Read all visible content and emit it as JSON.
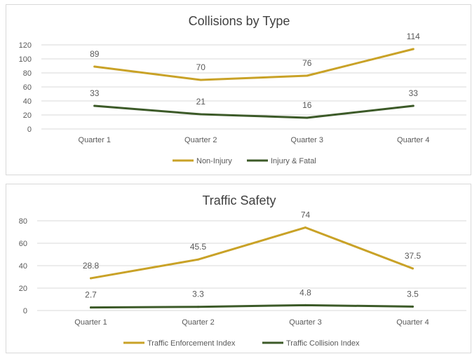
{
  "chart_data": [
    {
      "type": "line",
      "title": "Collisions by Type",
      "categories": [
        "Quarter 1",
        "Quarter 2",
        "Quarter 3",
        "Quarter 4"
      ],
      "ylim": [
        0,
        120
      ],
      "yticks": [
        0,
        20,
        40,
        60,
        80,
        100,
        120
      ],
      "grid": true,
      "legend": "bottom",
      "series": [
        {
          "name": "Non-Injury",
          "values": [
            89,
            70,
            76,
            114
          ],
          "color": "#c9a227"
        },
        {
          "name": "Injury & Fatal",
          "values": [
            33,
            21,
            16,
            33
          ],
          "color": "#3c5a28"
        }
      ]
    },
    {
      "type": "line",
      "title": "Traffic Safety",
      "categories": [
        "Quarter 1",
        "Quarter 2",
        "Quarter 3",
        "Quarter 4"
      ],
      "ylim": [
        0,
        80
      ],
      "yticks": [
        0,
        20,
        40,
        60,
        80
      ],
      "grid": true,
      "legend": "bottom",
      "series": [
        {
          "name": "Traffic Enforcement Index",
          "values": [
            28.8,
            45.5,
            74,
            37.5
          ],
          "color": "#c9a227"
        },
        {
          "name": "Traffic Collision Index",
          "values": [
            2.7,
            3.3,
            4.8,
            3.5
          ],
          "color": "#3c5a28"
        }
      ]
    }
  ]
}
